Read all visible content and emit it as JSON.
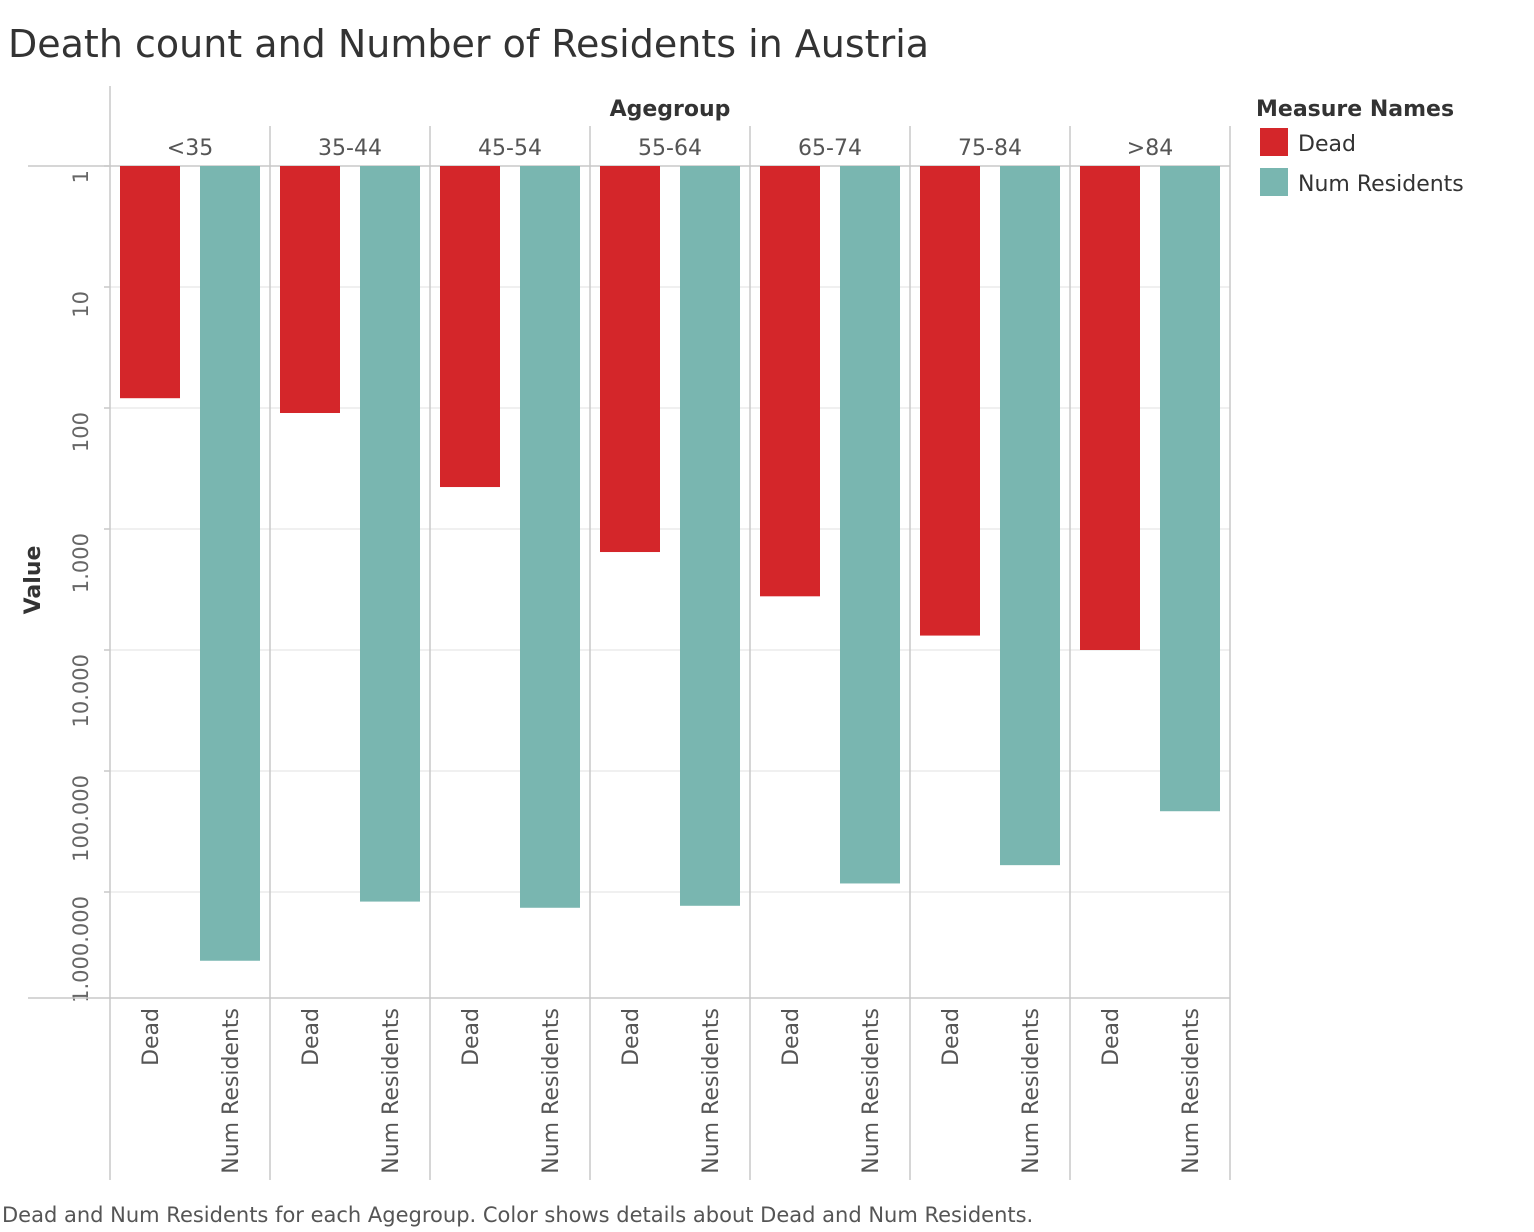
{
  "chart_data": {
    "type": "bar",
    "title": "Death count and Number of Residents in Austria",
    "column_header": "Agegroup",
    "ylabel": "Value",
    "y_scale": "log",
    "y_reversed": true,
    "ylim": [
      1,
      10000000
    ],
    "y_ticks": [
      1,
      10,
      100,
      1000,
      10000,
      100000,
      1000000
    ],
    "y_tick_labels": [
      "1",
      "10",
      "100",
      "1.000",
      "10.000",
      "100.000",
      "1.000.000"
    ],
    "categories": [
      "<35",
      "35-44",
      "45-54",
      "55-64",
      "65-74",
      "75-84",
      ">84"
    ],
    "series": [
      {
        "name": "Dead",
        "color": "#d4262a",
        "values": [
          83,
          110,
          450,
          1550,
          3600,
          7600,
          10000
        ]
      },
      {
        "name": "Num Residents",
        "color": "#79b6b0",
        "values": [
          3700000,
          1200000,
          1350000,
          1300000,
          850000,
          600000,
          215000
        ]
      }
    ],
    "legend": {
      "title": "Measure Names",
      "position": "right",
      "items": [
        "Dead",
        "Num Residents"
      ]
    },
    "grid": true,
    "caption": "Dead and Num Residents for each Agegroup.  Color shows details about Dead and Num Residents."
  }
}
